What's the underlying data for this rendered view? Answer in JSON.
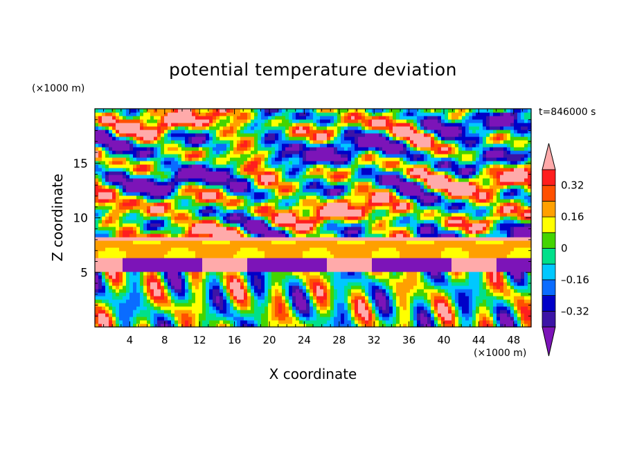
{
  "chart_data": {
    "type": "heatmap",
    "title": "potential temperature deviation",
    "xlabel": "X coordinate",
    "ylabel": "Z coordinate",
    "x_unit": "(×1000 m)",
    "y_unit": "(×1000 m)",
    "timestamp": "t=846000 s",
    "xlim": [
      0,
      50
    ],
    "ylim": [
      0,
      20
    ],
    "x_ticks": [
      4,
      8,
      12,
      16,
      20,
      24,
      28,
      32,
      36,
      40,
      44,
      48
    ],
    "y_ticks": [
      5,
      10,
      15
    ],
    "colorbar": {
      "levels": [
        -0.4,
        -0.32,
        -0.24,
        -0.16,
        -0.08,
        0,
        0.08,
        0.16,
        0.24,
        0.32,
        0.4
      ],
      "labels": [
        "0.32",
        "0.16",
        "0",
        "–0.16",
        "–0.32"
      ],
      "label_values": [
        0.32,
        0.16,
        0,
        -0.16,
        -0.32
      ],
      "colors": [
        "#7c14b8",
        "#3c14a6",
        "#0000c8",
        "#0a6cff",
        "#00c8ff",
        "#00e08a",
        "#44d400",
        "#ffff00",
        "#ffa000",
        "#ff5000",
        "#ff1e1e",
        "#ffaaaa"
      ],
      "extends": "both"
    }
  }
}
